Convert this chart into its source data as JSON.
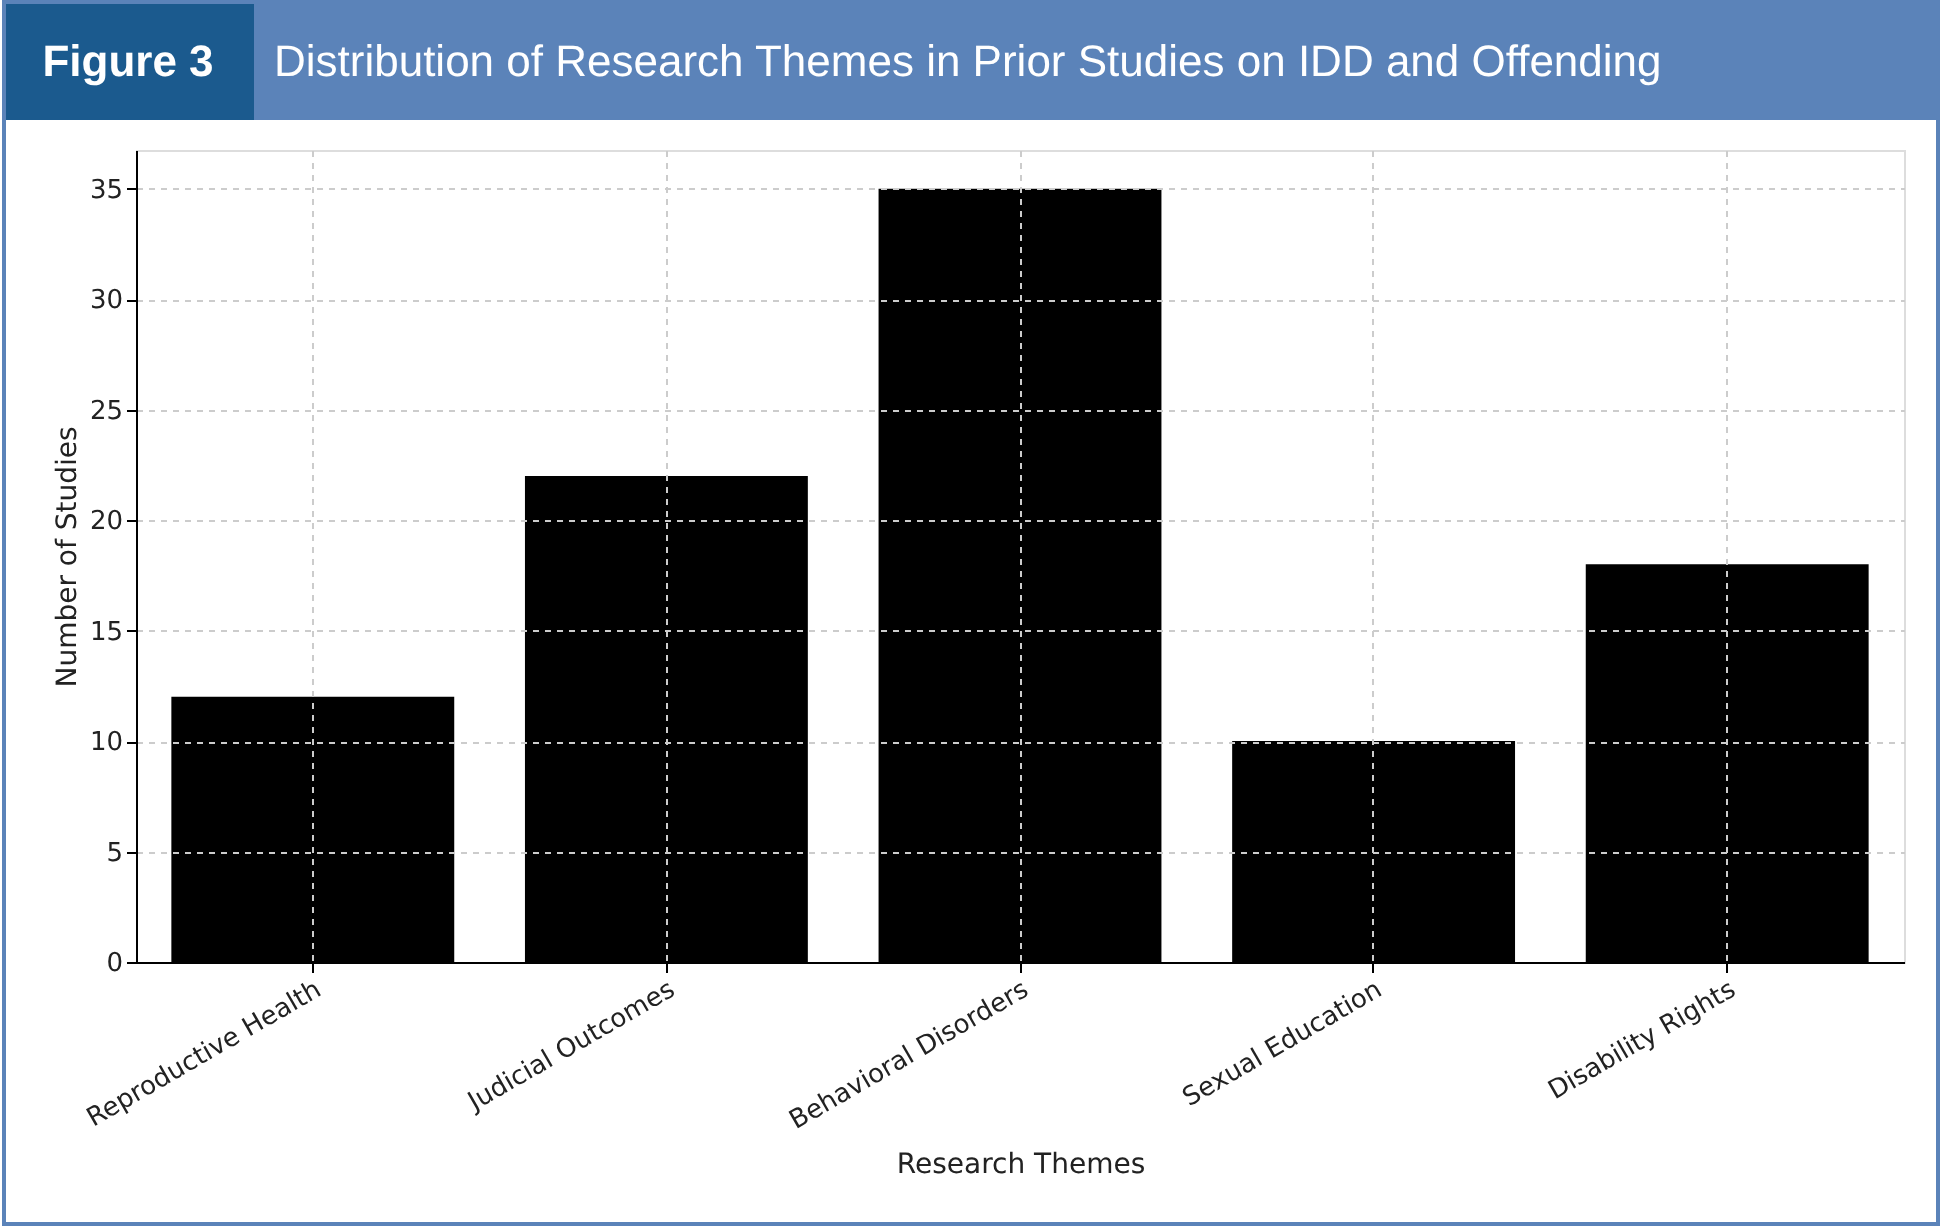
{
  "chart_data": {
    "type": "bar",
    "title": "Figure 3",
    "subtitle": "Distribution of Research Themes in Prior Studies on IDD and Offending",
    "xlabel": "Research Themes",
    "ylabel": "Number of Studies",
    "categories": [
      "Reproductive Health",
      "Judicial Outcomes",
      "Behavioral Disorders",
      "Sexual Education",
      "Disability Rights"
    ],
    "values": [
      12,
      22,
      35,
      10,
      18
    ],
    "color": "#000000",
    "ylim": [
      0,
      36.75
    ],
    "yticks": [
      0,
      5,
      10,
      15,
      20,
      25,
      30,
      35
    ],
    "grid": true
  }
}
